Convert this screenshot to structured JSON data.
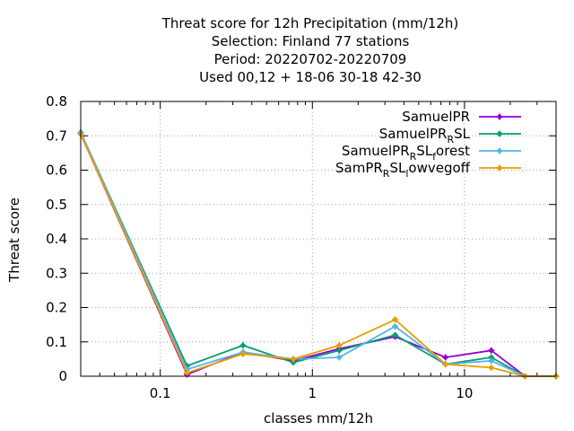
{
  "chart_data": {
    "type": "line",
    "title_lines": [
      "Threat score  for 12h Precipitation (mm/12h)",
      "Selection: Finland     77 stations",
      "Period: 20220702-20220709",
      "Used  00,12  + 18-06 30-18 42-30"
    ],
    "xlabel": "classes mm/12h",
    "ylabel": "Threat score",
    "xscale": "log",
    "xlim": [
      0.03,
      40
    ],
    "ylim": [
      0,
      0.8
    ],
    "grid": true,
    "legend_position": "top-right",
    "x_ticks": [
      {
        "value": 0.1,
        "label": "0.1"
      },
      {
        "value": 1,
        "label": "1"
      },
      {
        "value": 10,
        "label": "10"
      }
    ],
    "y_ticks": [
      {
        "value": 0,
        "label": "0"
      },
      {
        "value": 0.1,
        "label": "0.1"
      },
      {
        "value": 0.2,
        "label": "0.2"
      },
      {
        "value": 0.3,
        "label": "0.3"
      },
      {
        "value": 0.4,
        "label": "0.4"
      },
      {
        "value": 0.5,
        "label": "0.5"
      },
      {
        "value": 0.6,
        "label": "0.6"
      },
      {
        "value": 0.7,
        "label": "0.7"
      },
      {
        "value": 0.8,
        "label": "0.8"
      }
    ],
    "x": [
      0.03,
      0.15,
      0.35,
      0.75,
      1.5,
      3.5,
      7.5,
      15,
      25,
      40
    ],
    "series": [
      {
        "name": "SamuelPR",
        "legend_parts": [
          [
            "SamuelPR",
            ""
          ]
        ],
        "color": "#9400d3",
        "values": [
          0.705,
          0.005,
          0.07,
          0.045,
          0.08,
          0.115,
          0.055,
          0.075,
          0.0,
          0.0
        ]
      },
      {
        "name": "SamuelPR_RSL",
        "legend_parts": [
          [
            "SamuelPR",
            ""
          ],
          [
            "R",
            "sub"
          ],
          [
            "SL",
            ""
          ]
        ],
        "color": "#009e73",
        "values": [
          0.71,
          0.03,
          0.09,
          0.04,
          0.075,
          0.12,
          0.035,
          0.055,
          0.0,
          0.0
        ]
      },
      {
        "name": "SamuelPR_RSL_forest",
        "legend_parts": [
          [
            "SamuelPR",
            ""
          ],
          [
            "R",
            "sub"
          ],
          [
            "SL",
            ""
          ],
          [
            "f",
            "sub"
          ],
          [
            "orest",
            ""
          ]
        ],
        "color": "#56b4e9",
        "values": [
          0.71,
          0.02,
          0.07,
          0.05,
          0.055,
          0.145,
          0.035,
          0.045,
          0.0,
          0.0
        ]
      },
      {
        "name": "SamPR_RSL_lowvegoff",
        "legend_parts": [
          [
            "SamPR",
            ""
          ],
          [
            "R",
            "sub"
          ],
          [
            "SL",
            ""
          ],
          [
            "l",
            "sub"
          ],
          [
            "owvegoff",
            ""
          ]
        ],
        "color": "#e69f00",
        "values": [
          0.705,
          0.01,
          0.065,
          0.05,
          0.09,
          0.165,
          0.035,
          0.025,
          0.0,
          0.0
        ]
      }
    ]
  }
}
